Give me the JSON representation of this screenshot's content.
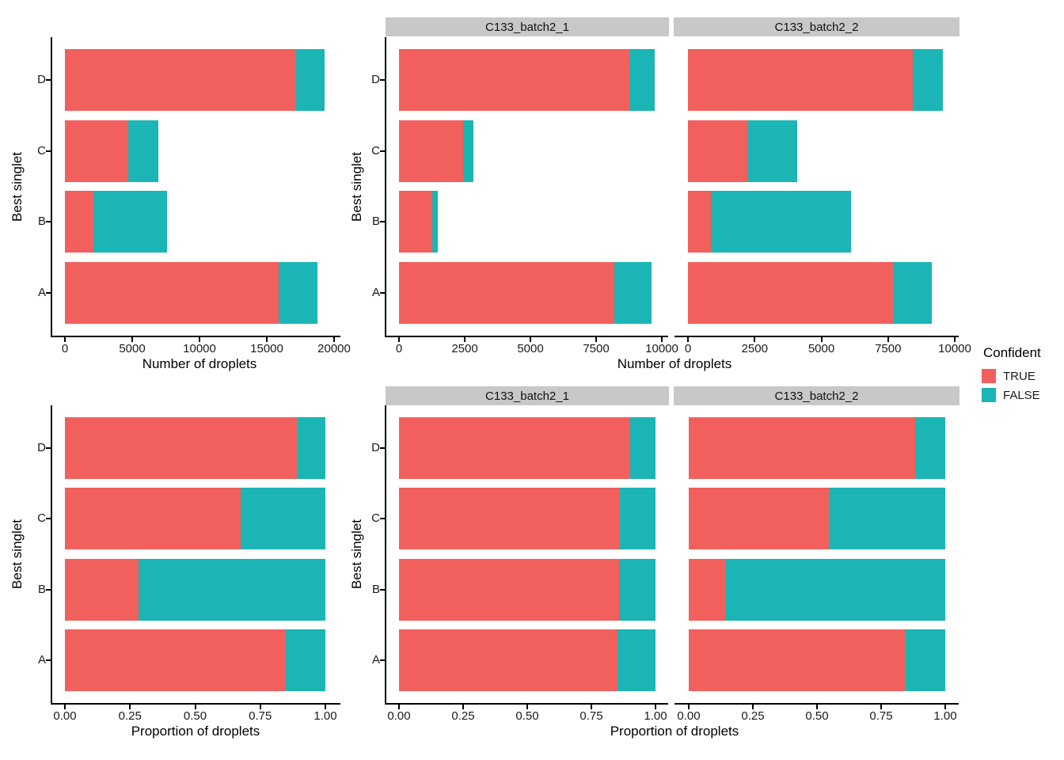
{
  "figure": {
    "background": "#FFFFFF"
  },
  "colors": {
    "confident_true": "#F2605D",
    "confident_false": "#1AB5B4",
    "strip_background": "#C8C8C8",
    "axis_line": "#000000"
  },
  "legend": {
    "title": "Confident",
    "items": [
      {
        "label": "TRUE",
        "color": "#F2605D"
      },
      {
        "label": "FALSE",
        "color": "#1AB5B4"
      }
    ]
  },
  "chart_data": [
    {
      "id": "droplet_counts_all",
      "type": "bar",
      "orientation": "horizontal",
      "stacked": true,
      "facet": null,
      "categories": [
        "A",
        "B",
        "C",
        "D"
      ],
      "series": [
        {
          "name": "TRUE",
          "values": [
            15890,
            2140,
            4680,
            17190
          ]
        },
        {
          "name": "FALSE",
          "values": [
            2860,
            5450,
            2250,
            2090
          ]
        }
      ],
      "xlabel": "Number of droplets",
      "ylabel": "Best singlet",
      "xlim": [
        0,
        20000
      ],
      "xticks": [
        0,
        5000,
        10000,
        15000,
        20000
      ],
      "xtick_labels": [
        "0",
        "5000",
        "10000",
        "15000",
        "20000"
      ],
      "grid": false
    },
    {
      "id": "droplet_counts_batch1",
      "type": "bar",
      "orientation": "horizontal",
      "stacked": true,
      "facet": "C133_batch2_1",
      "categories": [
        "A",
        "B",
        "C",
        "D"
      ],
      "series": [
        {
          "name": "TRUE",
          "values": [
            8190,
            1270,
            2430,
            8770
          ]
        },
        {
          "name": "FALSE",
          "values": [
            1430,
            210,
            390,
            960
          ]
        }
      ],
      "xlabel": "Number of droplets",
      "ylabel": "Best singlet",
      "xlim": [
        0,
        10000
      ],
      "xticks": [
        0,
        2500,
        5000,
        7500,
        10000
      ],
      "xtick_labels": [
        "0",
        "2500",
        "5000",
        "7500",
        "10000"
      ],
      "grid": false
    },
    {
      "id": "droplet_counts_batch2",
      "type": "bar",
      "orientation": "horizontal",
      "stacked": true,
      "facet": "C133_batch2_2",
      "categories": [
        "A",
        "B",
        "C",
        "D"
      ],
      "series": [
        {
          "name": "TRUE",
          "values": [
            7700,
            870,
            2250,
            8420
          ]
        },
        {
          "name": "FALSE",
          "values": [
            1430,
            5240,
            1860,
            1130
          ]
        }
      ],
      "xlabel": "Number of droplets",
      "ylabel": "Best singlet",
      "xlim": [
        0,
        10000
      ],
      "xticks": [
        0,
        2500,
        5000,
        7500,
        10000
      ],
      "xtick_labels": [
        "0",
        "2500",
        "5000",
        "7500",
        "10000"
      ],
      "grid": false
    },
    {
      "id": "droplet_proportion_all",
      "type": "bar",
      "orientation": "horizontal",
      "stacked": true,
      "facet": null,
      "categories": [
        "A",
        "B",
        "C",
        "D"
      ],
      "series": [
        {
          "name": "TRUE",
          "values": [
            0.847,
            0.282,
            0.675,
            0.892
          ]
        },
        {
          "name": "FALSE",
          "values": [
            0.153,
            0.718,
            0.325,
            0.108
          ]
        }
      ],
      "xlabel": "Proportion of droplets",
      "ylabel": "Best singlet",
      "xlim": [
        0,
        1
      ],
      "xticks": [
        0,
        0.25,
        0.5,
        0.75,
        1
      ],
      "xtick_labels": [
        "0.00",
        "0.25",
        "0.50",
        "0.75",
        "1.00"
      ],
      "grid": false
    },
    {
      "id": "droplet_proportion_batch1",
      "type": "bar",
      "orientation": "horizontal",
      "stacked": true,
      "facet": "C133_batch2_1",
      "categories": [
        "A",
        "B",
        "C",
        "D"
      ],
      "series": [
        {
          "name": "TRUE",
          "values": [
            0.851,
            0.858,
            0.862,
            0.901
          ]
        },
        {
          "name": "FALSE",
          "values": [
            0.149,
            0.142,
            0.138,
            0.099
          ]
        }
      ],
      "xlabel": "Proportion of droplets",
      "ylabel": "Best singlet",
      "xlim": [
        0,
        1
      ],
      "xticks": [
        0,
        0.25,
        0.5,
        0.75,
        1
      ],
      "xtick_labels": [
        "0.00",
        "0.25",
        "0.50",
        "0.75",
        "1.00"
      ],
      "grid": false
    },
    {
      "id": "droplet_proportion_batch2",
      "type": "bar",
      "orientation": "horizontal",
      "stacked": true,
      "facet": "C133_batch2_2",
      "categories": [
        "A",
        "B",
        "C",
        "D"
      ],
      "series": [
        {
          "name": "TRUE",
          "values": [
            0.843,
            0.142,
            0.547,
            0.882
          ]
        },
        {
          "name": "FALSE",
          "values": [
            0.157,
            0.858,
            0.453,
            0.118
          ]
        }
      ],
      "xlabel": "Proportion of droplets",
      "ylabel": "Best singlet",
      "xlim": [
        0,
        1
      ],
      "xticks": [
        0,
        0.25,
        0.5,
        0.75,
        1
      ],
      "xtick_labels": [
        "0.00",
        "0.25",
        "0.50",
        "0.75",
        "1.00"
      ],
      "grid": false
    }
  ]
}
